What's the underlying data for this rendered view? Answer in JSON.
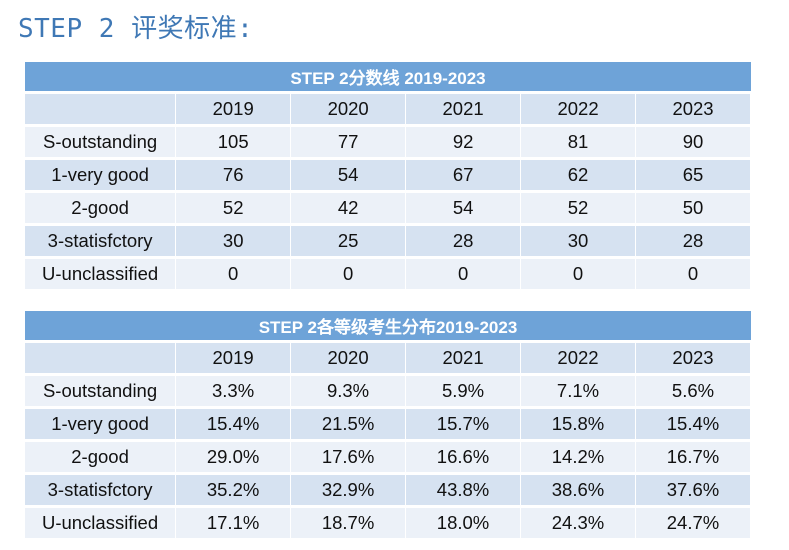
{
  "heading": "STEP 2 评奖标准:",
  "table1": {
    "title": "STEP 2分数线 2019-2023",
    "years": [
      "2019",
      "2020",
      "2021",
      "2022",
      "2023"
    ],
    "rows": [
      {
        "label": "S-outstanding",
        "values": [
          "105",
          "77",
          "92",
          "81",
          "90"
        ]
      },
      {
        "label": "1-very good",
        "values": [
          "76",
          "54",
          "67",
          "62",
          "65"
        ]
      },
      {
        "label": "2-good",
        "values": [
          "52",
          "42",
          "54",
          "52",
          "50"
        ]
      },
      {
        "label": "3-statisfctory",
        "values": [
          "30",
          "25",
          "28",
          "30",
          "28"
        ]
      },
      {
        "label": "U-unclassified",
        "values": [
          "0",
          "0",
          "0",
          "0",
          "0"
        ]
      }
    ]
  },
  "table2": {
    "title": "STEP 2各等级考生分布2019-2023",
    "years": [
      "2019",
      "2020",
      "2021",
      "2022",
      "2023"
    ],
    "rows": [
      {
        "label": "S-outstanding",
        "values": [
          "3.3%",
          "9.3%",
          "5.9%",
          "7.1%",
          "5.6%"
        ]
      },
      {
        "label": "1-very good",
        "values": [
          "15.4%",
          "21.5%",
          "15.7%",
          "15.8%",
          "15.4%"
        ]
      },
      {
        "label": "2-good",
        "values": [
          "29.0%",
          "17.6%",
          "16.6%",
          "14.2%",
          "16.7%"
        ]
      },
      {
        "label": "3-statisfctory",
        "values": [
          "35.2%",
          "32.9%",
          "43.8%",
          "38.6%",
          "37.6%"
        ]
      },
      {
        "label": "U-unclassified",
        "values": [
          "17.1%",
          "18.7%",
          "18.0%",
          "24.3%",
          "24.7%"
        ]
      }
    ]
  },
  "colors": {
    "heading": "#3f78b5",
    "header_band": "#6ea3d8",
    "row_dark": "#d6e2f1",
    "row_light": "#ecf1f8"
  }
}
